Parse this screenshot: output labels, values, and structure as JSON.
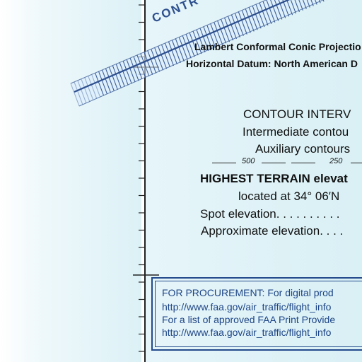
{
  "colors": {
    "chart_fill": "#dcf1f6",
    "frame": "#222222",
    "hatch": "#2d4f8e",
    "box": "#234a8c",
    "text": "#111111"
  },
  "band": {
    "label": "CONTR"
  },
  "projection": {
    "line1": "Lambert Conformal Conic Projectio",
    "line2": "Horizontal Datum: North American D"
  },
  "contour": {
    "heading": "CONTOUR INTERV",
    "intermediate": "Intermediate contou",
    "auxiliary": "Auxiliary contours",
    "sample_a": "500",
    "sample_b": "250"
  },
  "terrain": {
    "heading": "HIGHEST TERRAIN elevat",
    "location": "located at 34° 06′N",
    "spot": "Spot elevation. . . . . . . . . .",
    "approx": "Approximate elevation. . . ."
  },
  "procurement": {
    "line1": "FOR PROCUREMENT:  For digital prod",
    "line2": "http://www.faa.gov/air_traffic/flight_info",
    "line3": "For a list of approved FAA Print Provide",
    "line4": "http://www.faa.gov/air_traffic/flight_info"
  }
}
